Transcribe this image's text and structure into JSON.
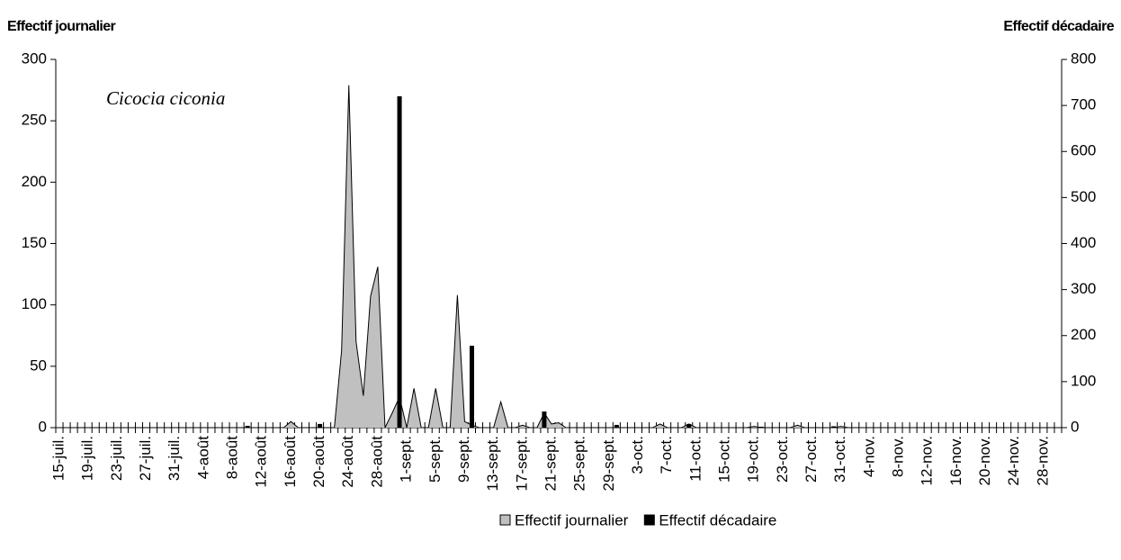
{
  "chart_data": {
    "type": "area",
    "y_label": "Effectif journalier",
    "y2_label": "Effectif décadaire",
    "annotation": "Cicocia ciconia",
    "categories": [
      "15-juil.",
      null,
      null,
      null,
      "19-juil.",
      null,
      null,
      null,
      "23-juil.",
      null,
      null,
      null,
      "27-juil.",
      null,
      null,
      null,
      "31-juil.",
      null,
      null,
      null,
      "4-août",
      null,
      null,
      null,
      "8-août",
      null,
      null,
      null,
      "12-août",
      null,
      null,
      null,
      "16-août",
      null,
      null,
      null,
      "20-août",
      null,
      null,
      null,
      "24-août",
      null,
      null,
      null,
      "28-août",
      null,
      null,
      null,
      "1-sept.",
      null,
      null,
      null,
      "5-sept.",
      null,
      null,
      null,
      "9-sept.",
      null,
      null,
      null,
      "13-sept.",
      null,
      null,
      null,
      "17-sept.",
      null,
      null,
      null,
      "21-sept.",
      null,
      null,
      null,
      "25-sept.",
      null,
      null,
      null,
      "29-sept.",
      null,
      null,
      null,
      "3-oct.",
      null,
      null,
      null,
      "7-oct.",
      null,
      null,
      null,
      "11-oct.",
      null,
      null,
      null,
      "15-oct.",
      null,
      null,
      null,
      "19-oct.",
      null,
      null,
      null,
      "23-oct.",
      null,
      null,
      null,
      "27-oct.",
      null,
      null,
      null,
      "31-oct.",
      null,
      null,
      null,
      "4-nov.",
      null,
      null,
      null,
      "8-nov.",
      null,
      null,
      null,
      "12-nov.",
      null,
      null,
      null,
      "16-nov.",
      null,
      null,
      null,
      "20-nov.",
      null,
      null,
      null,
      "24-nov.",
      null,
      null,
      null,
      "28-nov.",
      null,
      null
    ],
    "series": [
      {
        "name": "Effectif journalier",
        "color": "#c0c0c0",
        "type": "area",
        "values": [
          0,
          0,
          0,
          0,
          0,
          0,
          0,
          0,
          0,
          0,
          0,
          0,
          0,
          0,
          0,
          0,
          0,
          0,
          0,
          0,
          0,
          0,
          0,
          0,
          0,
          0,
          0,
          0,
          0,
          0,
          0,
          0,
          5,
          0,
          0,
          0,
          0,
          0,
          0,
          63,
          279,
          70,
          26,
          107,
          131,
          0,
          12,
          25,
          0,
          32,
          0,
          0,
          32,
          0,
          0,
          108,
          5,
          2,
          0,
          0,
          0,
          21,
          0,
          0,
          2,
          0,
          0,
          12,
          3,
          4,
          0,
          0,
          0,
          0,
          0,
          0,
          0,
          0,
          0,
          0,
          0,
          0,
          0,
          3,
          0,
          0,
          0,
          3,
          0,
          0,
          0,
          0,
          0,
          0,
          0,
          0,
          1,
          0,
          0,
          0,
          0,
          0,
          2,
          0,
          0,
          0,
          0,
          0,
          1,
          0,
          0,
          0,
          0,
          0,
          0,
          0,
          0,
          0,
          0,
          0,
          0,
          0,
          0,
          0,
          0,
          0,
          0,
          0,
          0,
          0,
          0,
          0,
          0,
          0,
          0,
          0,
          0,
          0,
          0
        ]
      },
      {
        "name": "Effectif décadaire",
        "color": "#000000",
        "type": "bar",
        "axis": "y2",
        "values": [
          null,
          null,
          null,
          null,
          null,
          null,
          null,
          null,
          null,
          null,
          null,
          null,
          null,
          null,
          null,
          null,
          null,
          null,
          null,
          null,
          null,
          null,
          null,
          null,
          null,
          null,
          4,
          null,
          null,
          null,
          null,
          null,
          null,
          null,
          null,
          null,
          8,
          null,
          null,
          null,
          null,
          null,
          null,
          null,
          null,
          null,
          null,
          720,
          null,
          null,
          null,
          null,
          null,
          null,
          null,
          null,
          null,
          178,
          null,
          null,
          null,
          null,
          null,
          null,
          null,
          null,
          null,
          35,
          null,
          null,
          null,
          null,
          null,
          null,
          null,
          null,
          null,
          6,
          null,
          null,
          null,
          null,
          null,
          null,
          null,
          null,
          null,
          8,
          null,
          null,
          null,
          null,
          null,
          null,
          null,
          null,
          null,
          2,
          null,
          null,
          null,
          null,
          null,
          null,
          null,
          null,
          null,
          3,
          null,
          null,
          null,
          null,
          null,
          null,
          null,
          null,
          null,
          null,
          null,
          null,
          null,
          null,
          null,
          null,
          null,
          null,
          null,
          null,
          null,
          null,
          null,
          null,
          null,
          null,
          null,
          null,
          null,
          null,
          null
        ]
      }
    ],
    "ylim": [
      0,
      300
    ],
    "yticks": [
      0,
      50,
      100,
      150,
      200,
      250,
      300
    ],
    "y2lim": [
      0,
      800
    ],
    "y2ticks": [
      0,
      100,
      200,
      300,
      400,
      500,
      600,
      700,
      800
    ],
    "grid": false,
    "legend": "bottom"
  }
}
